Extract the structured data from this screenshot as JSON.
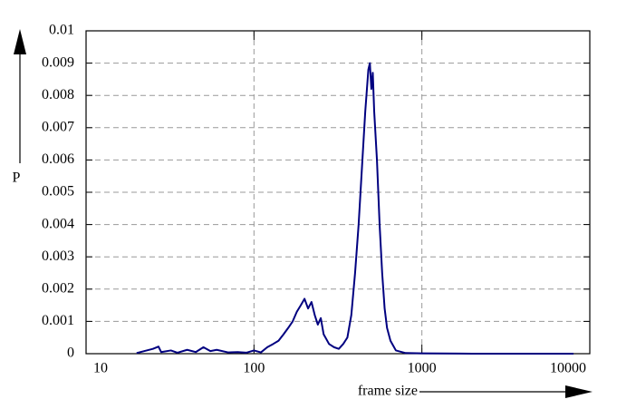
{
  "chart_data": {
    "type": "line",
    "xlabel": "frame size",
    "ylabel": "P",
    "xscale": "log",
    "grid": true,
    "xlim": [
      10,
      10000
    ],
    "ylim": [
      0,
      0.01
    ],
    "xticks": [
      10,
      100,
      1000,
      10000
    ],
    "yticks": [
      0,
      0.001,
      0.002,
      0.003,
      0.004,
      0.005,
      0.006,
      0.007,
      0.008,
      0.009,
      0.01
    ],
    "series": [
      {
        "color": "#000080",
        "x": [
          20,
          25,
          27,
          28,
          32,
          35,
          40,
          45,
          50,
          55,
          60,
          70,
          80,
          90,
          100,
          110,
          120,
          130,
          140,
          150,
          160,
          170,
          180,
          190,
          200,
          210,
          220,
          230,
          240,
          250,
          260,
          280,
          300,
          320,
          340,
          360,
          380,
          400,
          420,
          440,
          460,
          480,
          490,
          500,
          510,
          520,
          540,
          560,
          580,
          600,
          620,
          650,
          700,
          800,
          1000,
          2000,
          5000,
          8000
        ],
        "values": [
          2e-05,
          0.00015,
          0.00022,
          5e-05,
          0.0001,
          3e-05,
          0.00012,
          5e-05,
          0.0002,
          8e-05,
          0.00012,
          4e-05,
          5e-05,
          3e-05,
          0.0001,
          4e-05,
          0.0002,
          0.0003,
          0.0004,
          0.0006,
          0.0008,
          0.001,
          0.0013,
          0.0015,
          0.0017,
          0.0014,
          0.0016,
          0.0012,
          0.0009,
          0.0011,
          0.0006,
          0.0003,
          0.0002,
          0.00015,
          0.0003,
          0.0005,
          0.0012,
          0.0025,
          0.004,
          0.0058,
          0.0075,
          0.0088,
          0.009,
          0.0082,
          0.0087,
          0.0075,
          0.006,
          0.004,
          0.0025,
          0.0014,
          0.0008,
          0.0004,
          0.0001,
          2e-05,
          1e-05,
          0,
          0,
          0
        ]
      }
    ]
  }
}
